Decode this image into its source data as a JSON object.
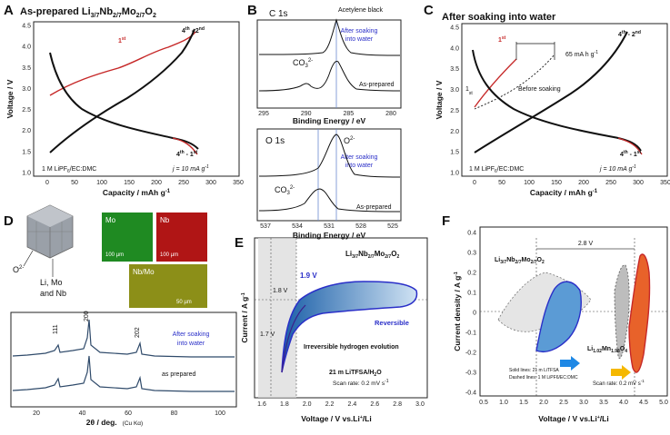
{
  "panels": {
    "A": {
      "label": "A",
      "title_main": "As-prepared Li",
      "title_sub1": "3/7",
      "title_mid1": "Nb",
      "title_sub2": "2/7",
      "title_mid2": "Mo",
      "title_sub3": "2/7",
      "title_mid3": "O",
      "title_sub4": "2",
      "ylabel": "Voltage  /  V",
      "xlabel": "Capacity   /   mAh g",
      "xlabel_sup": "-1",
      "xticks": [
        "0",
        "50",
        "100",
        "150",
        "200",
        "250",
        "300",
        "350"
      ],
      "yticks": [
        "1.0",
        "1.5",
        "2.0",
        "2.5",
        "3.0",
        "3.5",
        "4.0",
        "4.5"
      ],
      "cycle_first": "1",
      "cycle_first_sup": "st",
      "cycle_later": "4",
      "cycle_later_sup": "th",
      "cycle_later_rest": " - 2",
      "cycle_later_sup2": "nd",
      "cycle_later_b": "4",
      "cycle_later_b_sup": "th",
      "cycle_later_b_rest": " - 1",
      "cycle_later_b_sup2": "st",
      "electrolyte": "1 M LiPF",
      "electrolyte_sub": "6",
      "electrolyte_rest": "/EC:DMC",
      "current": "j = 10 mA g",
      "current_sup": "-1"
    },
    "B": {
      "label": "B",
      "c1s": "C 1s",
      "acetylene": "Acetylene black",
      "after_soak1": "After soaking",
      "after_soak2": "into water",
      "co3": "CO",
      "co3_sub": "3",
      "co3_sup": "2-",
      "as_prepared": "As-prepared",
      "xticks_c": [
        "295",
        "290",
        "285",
        "280"
      ],
      "xlabel": "Binding Energy   /   eV",
      "o1s": "O 1s",
      "o2": "O",
      "o2_sup": "2-",
      "xticks_o": [
        "537",
        "534",
        "531",
        "528",
        "525"
      ]
    },
    "C": {
      "label": "C",
      "title": "After soaking into water",
      "ylabel": "Voltage  /  V",
      "xlabel": "Capacity   /   mAh g",
      "xlabel_sup": "-1",
      "xticks": [
        "0",
        "50",
        "100",
        "150",
        "200",
        "250",
        "300",
        "350"
      ],
      "yticks": [
        "1.0",
        "1.5",
        "2.0",
        "2.5",
        "3.0",
        "3.5",
        "4.0",
        "4.5"
      ],
      "delta": "65 mA h g",
      "delta_sup": "-1",
      "before_soak": "Before soaking",
      "first": "1",
      "first_sup": "st",
      "later": "4",
      "later_sup": "th",
      "later_rest": " - 2",
      "later_sup2": "nd",
      "later_b": "4",
      "later_b_sup": "th",
      "later_b_rest": " - 1",
      "later_b_sup2": "st",
      "one": "1",
      "one_sup": "st",
      "electrolyte": "1 M LiPF",
      "electrolyte_sub": "6",
      "electrolyte_rest": "/EC:DMC",
      "current": "j = 10 mA g",
      "current_sup": "-1"
    },
    "D": {
      "label": "D",
      "o2": "O",
      "o2_sup": "2-",
      "cation1": "Li, Mo",
      "cation2": "and Nb",
      "map_mo": "Mo",
      "map_nb": "Nb",
      "map_nbmo": "Nb/Mo",
      "scale1": "100 µm",
      "scale2": "100 µm",
      "scale3": "50 µm",
      "peak111": "111",
      "peak200": "200",
      "peak202": "202",
      "after_soak1": "After soaking",
      "after_soak2": "into water",
      "as_prepared": "as prepared",
      "xticks": [
        "20",
        "40",
        "60",
        "80",
        "100"
      ],
      "xlabel": "2θ / deg.",
      "xlabel_unit": "(Cu Kα)"
    },
    "E": {
      "label": "E",
      "compound": "Li",
      "compound_s1": "3/7",
      "compound_m1": "Nb",
      "compound_s2": "2/7",
      "compound_m2": "Mo",
      "compound_s3": "2/7",
      "compound_m3": "O",
      "compound_s4": "2",
      "v19": "1.9 V",
      "v18": "1.8 V",
      "v17": "1.7 V",
      "reversible": "Reversible",
      "irreversible": "Irreversible hydrogen evolution",
      "electrolyte": "21 m LiTFSA/H",
      "electrolyte_sub": "2",
      "electrolyte_rest": "O",
      "scan": "Scan rate: 0.2 mV s",
      "scan_sup": "-1",
      "ylabel": "Current  /  A g",
      "ylabel_sup": "-1",
      "xlabel": "Voltage / V vs.Li",
      "xlabel_sup": "+",
      "xlabel_rest": "/Li",
      "xticks": [
        "1.6",
        "1.8",
        "2.0",
        "2.2",
        "2.4",
        "2.6",
        "2.8",
        "3.0"
      ]
    },
    "F": {
      "label": "F",
      "span": "2.8 V",
      "compound_a": "Li",
      "compound_a_s1": "3/7",
      "compound_a_m1": "Nb",
      "compound_a_s2": "2/7",
      "compound_a_m2": "Mo",
      "compound_a_s3": "2/7",
      "compound_a_m3": "O",
      "compound_a_s4": "2",
      "compound_b": "Li",
      "compound_b_s1": "1.02",
      "compound_b_m1": "Mn",
      "compound_b_s2": "1.98",
      "compound_b_m2": "O",
      "compound_b_s3": "4",
      "solid_note": "Solid lines: 21 m LiTFSA",
      "dashed_note": "Dashed lines: 1 M LiPF6/EC:DMC",
      "scan": "Scan rate: 0.2 mV s",
      "scan_sup": "-1",
      "ylabel": "Current density  /  A g",
      "ylabel_sup": "-1",
      "xlabel": "Voltage / V vs.Li",
      "xlabel_sup": "+",
      "xlabel_rest": "/Li",
      "xticks": [
        "0.5",
        "1.0",
        "1.5",
        "2.0",
        "2.5",
        "3.0",
        "3.5",
        "4.0",
        "4.5",
        "5.0"
      ],
      "yticks": [
        "0.4",
        "0.3",
        "0.2",
        "0.1",
        "0",
        "-0.1",
        "-0.2",
        "-0.3",
        "-0.4"
      ]
    }
  },
  "colors": {
    "red": "#c62828",
    "blue": "#2a2fc8",
    "cv_fill": "#5b9bd5",
    "orange": "#e8622a"
  }
}
